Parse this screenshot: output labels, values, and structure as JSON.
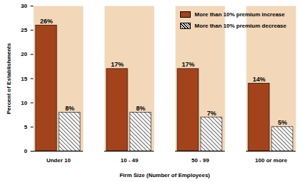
{
  "chart_data": {
    "type": "bar",
    "categories": [
      "Under 10",
      "10 - 49",
      "50 - 99",
      "100 or more"
    ],
    "series": [
      {
        "name": "More than 10% premium increase",
        "color": "#a3431b",
        "values": [
          26,
          17,
          17,
          14
        ],
        "value_labels": [
          "26%",
          "17%",
          "17%",
          "14%"
        ]
      },
      {
        "name": "More than 10% premium decrease",
        "color": "#ffffff",
        "values": [
          8,
          8,
          7,
          5
        ],
        "value_labels": [
          "8%",
          "8%",
          "7%",
          "5%"
        ]
      }
    ],
    "x_label": "Firm Size (Number of Employees)",
    "y_label": "Percent of Establishments",
    "ylim": [
      0,
      30
    ],
    "yticks": [
      0,
      5,
      10,
      15,
      20,
      25,
      30
    ],
    "grid": false,
    "legend": "top-right",
    "data_labels": true
  }
}
